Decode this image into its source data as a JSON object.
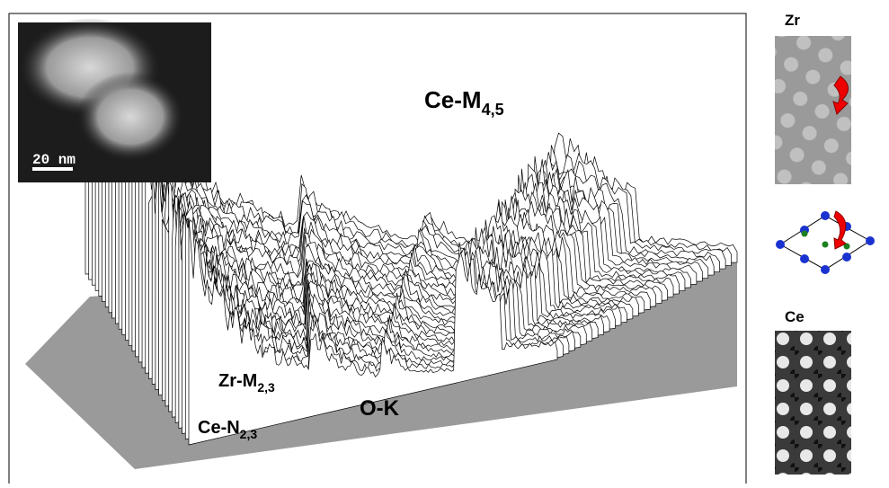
{
  "figure": {
    "inset": {
      "scale_bar": "20 nm"
    },
    "labels": [
      {
        "main": "Ce-M",
        "sub": "4,5"
      },
      {
        "main": "Zr-M",
        "sub": "2,3"
      },
      {
        "main": "O-K"
      },
      {
        "main": "Ce-N",
        "sub": "2,3"
      }
    ],
    "side_panels": {
      "top": "Zr",
      "bottom": "Ce"
    }
  }
}
